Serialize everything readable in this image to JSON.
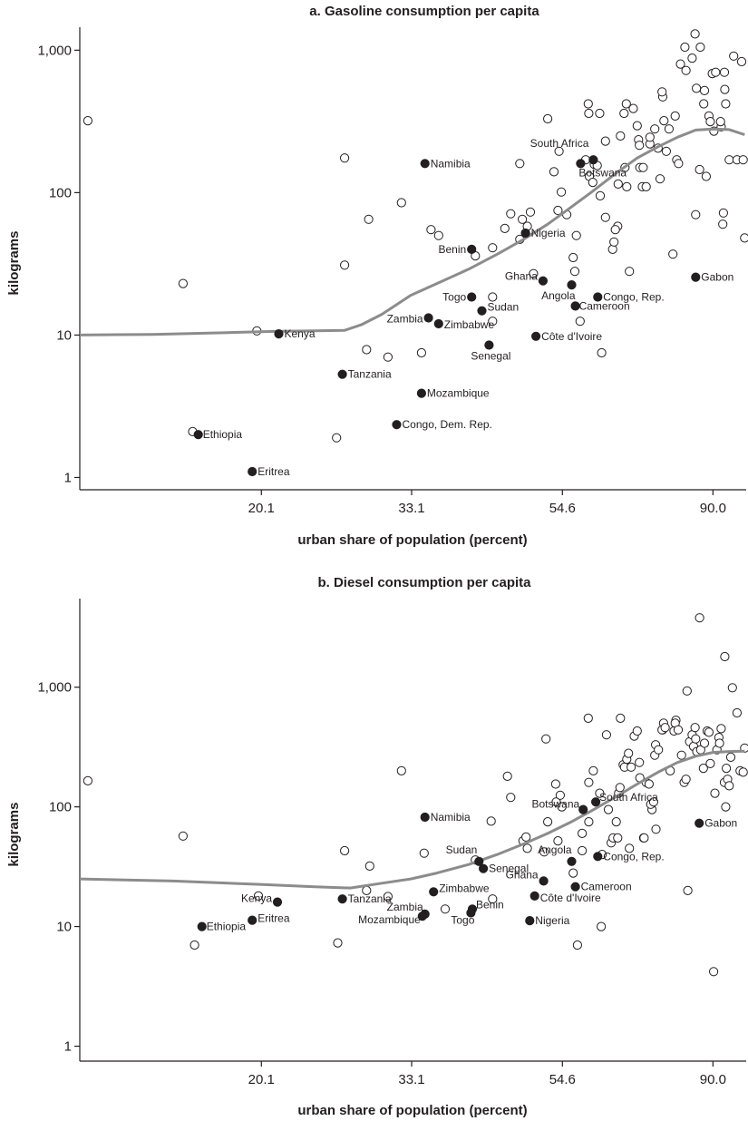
{
  "colors": {
    "axis": "#231f20",
    "loess": "#8c8c8c",
    "highlight": "#231f20"
  },
  "chart_data": [
    {
      "type": "scatter",
      "title": "a. Gasoline consumption per capita",
      "xlabel": "urban share of population (percent)",
      "ylabel": "kilograms",
      "x_scale": "log",
      "y_scale": "log",
      "x_ticks": [
        20.1,
        33.1,
        54.6,
        90.0
      ],
      "x_tick_labels": [
        "20.1",
        "33.1",
        "54.6",
        "90.0"
      ],
      "y_ticks": [
        1,
        10,
        100,
        1000
      ],
      "y_tick_labels": [
        "1",
        "10",
        "100",
        "1,000"
      ],
      "xlim": [
        11.0,
        100.5
      ],
      "ylim": [
        0.82,
        1450
      ],
      "grid": false,
      "labeled_points": [
        {
          "label": "Namibia",
          "x": 34.6,
          "y": 160
        },
        {
          "label": "South Africa",
          "x": 60.5,
          "y": 170
        },
        {
          "label": "Botswana",
          "x": 58.0,
          "y": 160
        },
        {
          "label": "Nigeria",
          "x": 48.3,
          "y": 52
        },
        {
          "label": "Benin",
          "x": 40.4,
          "y": 40
        },
        {
          "label": "Ghana",
          "x": 51.2,
          "y": 24
        },
        {
          "label": "Angola",
          "x": 56.3,
          "y": 22.5
        },
        {
          "label": "Togo",
          "x": 40.4,
          "y": 18.5
        },
        {
          "label": "Sudan",
          "x": 41.8,
          "y": 14.8
        },
        {
          "label": "Congo, Rep.",
          "x": 61.4,
          "y": 18.5
        },
        {
          "label": "Cameroon",
          "x": 57.0,
          "y": 16
        },
        {
          "label": "Gabon",
          "x": 85.0,
          "y": 25.5
        },
        {
          "label": "Zambia",
          "x": 35.0,
          "y": 13.2
        },
        {
          "label": "Zimbabwe",
          "x": 36.2,
          "y": 12
        },
        {
          "label": "Côte d'Ivoire",
          "x": 50.0,
          "y": 9.8
        },
        {
          "label": "Senegal",
          "x": 42.8,
          "y": 8.5
        },
        {
          "label": "Kenya",
          "x": 21.3,
          "y": 10.2
        },
        {
          "label": "Tanzania",
          "x": 26.3,
          "y": 5.3
        },
        {
          "label": "Mozambique",
          "x": 34.2,
          "y": 3.9
        },
        {
          "label": "Congo, Dem. Rep.",
          "x": 31.5,
          "y": 2.35
        },
        {
          "label": "Ethiopia",
          "x": 16.3,
          "y": 2.0
        },
        {
          "label": "Eritrea",
          "x": 19.5,
          "y": 1.1
        }
      ],
      "other_points": [
        [
          11.3,
          320
        ],
        [
          15.5,
          23
        ],
        [
          16.0,
          2.1
        ],
        [
          19.8,
          10.7
        ],
        [
          25.8,
          1.9
        ],
        [
          26.5,
          175
        ],
        [
          26.5,
          31
        ],
        [
          28.7,
          65
        ],
        [
          28.5,
          7.9
        ],
        [
          30.6,
          7.0
        ],
        [
          32.0,
          85
        ],
        [
          34.2,
          7.5
        ],
        [
          35.3,
          55
        ],
        [
          36.2,
          50
        ],
        [
          40.9,
          36
        ],
        [
          43.3,
          18.5
        ],
        [
          43.3,
          12.5
        ],
        [
          43.3,
          41
        ],
        [
          45.1,
          56
        ],
        [
          46.0,
          71
        ],
        [
          47.4,
          47
        ],
        [
          47.8,
          65
        ],
        [
          48.6,
          58
        ],
        [
          47.4,
          160
        ],
        [
          49.6,
          27
        ],
        [
          49.1,
          73
        ],
        [
          52.0,
          330
        ],
        [
          53.1,
          140
        ],
        [
          53.8,
          75
        ],
        [
          54.0,
          195
        ],
        [
          54.4,
          101
        ],
        [
          55.4,
          70
        ],
        [
          56.9,
          28
        ],
        [
          56.6,
          35
        ],
        [
          57.9,
          12.5
        ],
        [
          57.2,
          50
        ],
        [
          59.0,
          170
        ],
        [
          59.7,
          130
        ],
        [
          60.4,
          118
        ],
        [
          60.7,
          158
        ],
        [
          59.5,
          420
        ],
        [
          59.6,
          360
        ],
        [
          61.3,
          155
        ],
        [
          61.9,
          95
        ],
        [
          63.0,
          67
        ],
        [
          62.2,
          7.5
        ],
        [
          61.8,
          360
        ],
        [
          63.0,
          230
        ],
        [
          64.5,
          40
        ],
        [
          64.8,
          45
        ],
        [
          65.6,
          58
        ],
        [
          65.1,
          55
        ],
        [
          65.7,
          115
        ],
        [
          66.2,
          250
        ],
        [
          67.6,
          110
        ],
        [
          67.2,
          150
        ],
        [
          67.0,
          360
        ],
        [
          67.5,
          420
        ],
        [
          68.2,
          28
        ],
        [
          69.1,
          390
        ],
        [
          70.6,
          150
        ],
        [
          70.0,
          295
        ],
        [
          70.3,
          235
        ],
        [
          70.5,
          215
        ],
        [
          71.2,
          110
        ],
        [
          71.4,
          150
        ],
        [
          72.1,
          110
        ],
        [
          73.0,
          220
        ],
        [
          73.0,
          245
        ],
        [
          74.2,
          280
        ],
        [
          75.0,
          205
        ],
        [
          75.5,
          125
        ],
        [
          76.5,
          320
        ],
        [
          76.2,
          470
        ],
        [
          76.0,
          510
        ],
        [
          77.1,
          195
        ],
        [
          77.8,
          280
        ],
        [
          78.8,
          37
        ],
        [
          79.4,
          345
        ],
        [
          79.8,
          170
        ],
        [
          80.3,
          160
        ],
        [
          80.8,
          800
        ],
        [
          82.0,
          1050
        ],
        [
          82.3,
          720
        ],
        [
          84.8,
          1300
        ],
        [
          84.0,
          880
        ],
        [
          85.2,
          540
        ],
        [
          86.1,
          145
        ],
        [
          86.3,
          1050
        ],
        [
          87.5,
          520
        ],
        [
          87.3,
          420
        ],
        [
          88.0,
          130
        ],
        [
          88.8,
          345
        ],
        [
          89.2,
          315
        ],
        [
          89.8,
          685
        ],
        [
          90.3,
          270
        ],
        [
          90.8,
          700
        ],
        [
          92.5,
          290
        ],
        [
          92.3,
          315
        ],
        [
          93.0,
          60
        ],
        [
          93.2,
          72
        ],
        [
          93.5,
          700
        ],
        [
          93.6,
          530
        ],
        [
          93.9,
          420
        ],
        [
          95.0,
          170
        ],
        [
          96.4,
          910
        ],
        [
          97.5,
          170
        ],
        [
          99.0,
          830
        ],
        [
          99.5,
          170
        ],
        [
          100.0,
          48
        ],
        [
          85.0,
          70
        ]
      ],
      "trend": {
        "x": [
          11.0,
          14.0,
          18.0,
          21.0,
          24.0,
          26.5,
          28.0,
          30.0,
          33.0,
          36.0,
          40.0,
          44.0,
          48.0,
          52.0,
          56.0,
          60.0,
          65.0,
          70.0,
          75.0,
          80.0,
          85.0,
          90.0,
          95.0,
          100.0
        ],
        "y": [
          10,
          10.1,
          10.4,
          10.6,
          10.7,
          10.8,
          11.8,
          14,
          19,
          23,
          29,
          37,
          47,
          60,
          78,
          100,
          135,
          175,
          210,
          245,
          275,
          280,
          277,
          255
        ]
      }
    },
    {
      "type": "scatter",
      "title": "b. Diesel consumption per capita",
      "xlabel": "urban share of population (percent)",
      "ylabel": "kilograms",
      "x_scale": "log",
      "y_scale": "log",
      "x_ticks": [
        20.1,
        33.1,
        54.6,
        90.0
      ],
      "x_tick_labels": [
        "20.1",
        "33.1",
        "54.6",
        "90.0"
      ],
      "y_ticks": [
        1,
        10,
        100,
        1000
      ],
      "y_tick_labels": [
        "1",
        "10",
        "100",
        "1,000"
      ],
      "xlim": [
        11.0,
        100.5
      ],
      "ylim": [
        0.75,
        5500
      ],
      "grid": false,
      "labeled_points": [
        {
          "label": "Namibia",
          "x": 34.6,
          "y": 82
        },
        {
          "label": "South Africa",
          "x": 61.0,
          "y": 110
        },
        {
          "label": "Botswana",
          "x": 58.5,
          "y": 95
        },
        {
          "label": "Gabon",
          "x": 86.0,
          "y": 73
        },
        {
          "label": "Angola",
          "x": 56.3,
          "y": 35
        },
        {
          "label": "Congo, Rep.",
          "x": 61.4,
          "y": 38.5
        },
        {
          "label": "Sudan",
          "x": 41.4,
          "y": 35
        },
        {
          "label": "Senegal",
          "x": 42.0,
          "y": 30.5
        },
        {
          "label": "Ghana",
          "x": 51.3,
          "y": 24
        },
        {
          "label": "Cameroon",
          "x": 57.0,
          "y": 21.5
        },
        {
          "label": "Zimbabwe",
          "x": 35.6,
          "y": 19.5
        },
        {
          "label": "Côte d'Ivoire",
          "x": 49.8,
          "y": 18
        },
        {
          "label": "Tanzania",
          "x": 26.3,
          "y": 17
        },
        {
          "label": "Kenya",
          "x": 21.2,
          "y": 16
        },
        {
          "label": "Zambia",
          "x": 34.6,
          "y": 12.7
        },
        {
          "label": "Mozambique",
          "x": 34.3,
          "y": 12.2
        },
        {
          "label": "Benin",
          "x": 40.5,
          "y": 14
        },
        {
          "label": "Togo",
          "x": 40.3,
          "y": 13
        },
        {
          "label": "Nigeria",
          "x": 49.0,
          "y": 11.2
        },
        {
          "label": "Eritrea",
          "x": 19.5,
          "y": 11.3
        },
        {
          "label": "Ethiopia",
          "x": 16.5,
          "y": 10
        }
      ],
      "other_points": [
        [
          11.3,
          165
        ],
        [
          15.5,
          57
        ],
        [
          16.1,
          7.0
        ],
        [
          19.9,
          18
        ],
        [
          25.9,
          7.3
        ],
        [
          26.5,
          43
        ],
        [
          28.5,
          20
        ],
        [
          28.8,
          32
        ],
        [
          30.6,
          17.8
        ],
        [
          32.0,
          200
        ],
        [
          34.5,
          41
        ],
        [
          37.0,
          14
        ],
        [
          40.9,
          36
        ],
        [
          43.1,
          76
        ],
        [
          43.3,
          17
        ],
        [
          45.5,
          180
        ],
        [
          46.0,
          120
        ],
        [
          47.9,
          52
        ],
        [
          48.4,
          56
        ],
        [
          48.6,
          45
        ],
        [
          51.7,
          370
        ],
        [
          51.4,
          42
        ],
        [
          52.0,
          75
        ],
        [
          53.4,
          155
        ],
        [
          53.5,
          110
        ],
        [
          53.8,
          52
        ],
        [
          54.2,
          125
        ],
        [
          54.5,
          100
        ],
        [
          56.6,
          28
        ],
        [
          57.4,
          7.0
        ],
        [
          58.3,
          60
        ],
        [
          58.3,
          43
        ],
        [
          59.6,
          75
        ],
        [
          59.5,
          550
        ],
        [
          59.6,
          160
        ],
        [
          60.5,
          200
        ],
        [
          61.8,
          130
        ],
        [
          62.1,
          10
        ],
        [
          62.3,
          40
        ],
        [
          63.2,
          400
        ],
        [
          63.6,
          95
        ],
        [
          64.2,
          50
        ],
        [
          64.6,
          55
        ],
        [
          65.3,
          75
        ],
        [
          65.6,
          55
        ],
        [
          65.8,
          130
        ],
        [
          66.1,
          145
        ],
        [
          66.8,
          225
        ],
        [
          66.2,
          550
        ],
        [
          67.1,
          215
        ],
        [
          67.6,
          250
        ],
        [
          68.0,
          280
        ],
        [
          68.2,
          45
        ],
        [
          68.6,
          215
        ],
        [
          69.3,
          390
        ],
        [
          70.0,
          430
        ],
        [
          70.5,
          235
        ],
        [
          70.6,
          175
        ],
        [
          71.5,
          55
        ],
        [
          71.6,
          55
        ],
        [
          72.1,
          160
        ],
        [
          72.8,
          155
        ],
        [
          73.5,
          95
        ],
        [
          73.2,
          105
        ],
        [
          73.9,
          110
        ],
        [
          74.5,
          65
        ],
        [
          74.4,
          330
        ],
        [
          74.2,
          270
        ],
        [
          75.1,
          300
        ],
        [
          76.2,
          440
        ],
        [
          76.4,
          500
        ],
        [
          76.0,
          440
        ],
        [
          76.8,
          460
        ],
        [
          78.1,
          200
        ],
        [
          79.6,
          530
        ],
        [
          79.4,
          500
        ],
        [
          79.1,
          430
        ],
        [
          80.2,
          440
        ],
        [
          81.1,
          270
        ],
        [
          81.8,
          160
        ],
        [
          82.6,
          930
        ],
        [
          82.3,
          170
        ],
        [
          83.3,
          350
        ],
        [
          84.0,
          400
        ],
        [
          84.4,
          320
        ],
        [
          84.8,
          460
        ],
        [
          85.0,
          370
        ],
        [
          85.3,
          290
        ],
        [
          86.4,
          300
        ],
        [
          86.1,
          3800
        ],
        [
          87.2,
          210
        ],
        [
          87.5,
          340
        ],
        [
          88.3,
          430
        ],
        [
          88.8,
          420
        ],
        [
          89.2,
          230
        ],
        [
          90.2,
          4.2
        ],
        [
          90.6,
          130
        ],
        [
          91.2,
          300
        ],
        [
          91.8,
          380
        ],
        [
          92.5,
          450
        ],
        [
          92.0,
          340
        ],
        [
          93.5,
          160
        ],
        [
          93.6,
          1800
        ],
        [
          93.9,
          100
        ],
        [
          94.1,
          210
        ],
        [
          94.5,
          170
        ],
        [
          95.0,
          150
        ],
        [
          95.5,
          260
        ],
        [
          96.0,
          990
        ],
        [
          97.5,
          610
        ],
        [
          98.5,
          200
        ],
        [
          99.5,
          195
        ],
        [
          100.0,
          310
        ],
        [
          82.8,
          20
        ]
      ],
      "trend": {
        "x": [
          11.0,
          15.0,
          20.0,
          24.0,
          27.0,
          30.0,
          33.0,
          36.0,
          40.0,
          44.0,
          48.0,
          52.0,
          56.0,
          60.0,
          65.0,
          70.0,
          75.0,
          80.0,
          85.0,
          90.0,
          95.0,
          100.0
        ],
        "y": [
          25,
          24,
          22.5,
          21.5,
          21,
          23,
          25,
          28,
          33,
          40,
          49,
          60,
          74,
          92,
          120,
          155,
          195,
          235,
          265,
          285,
          290,
          292
        ]
      }
    }
  ]
}
